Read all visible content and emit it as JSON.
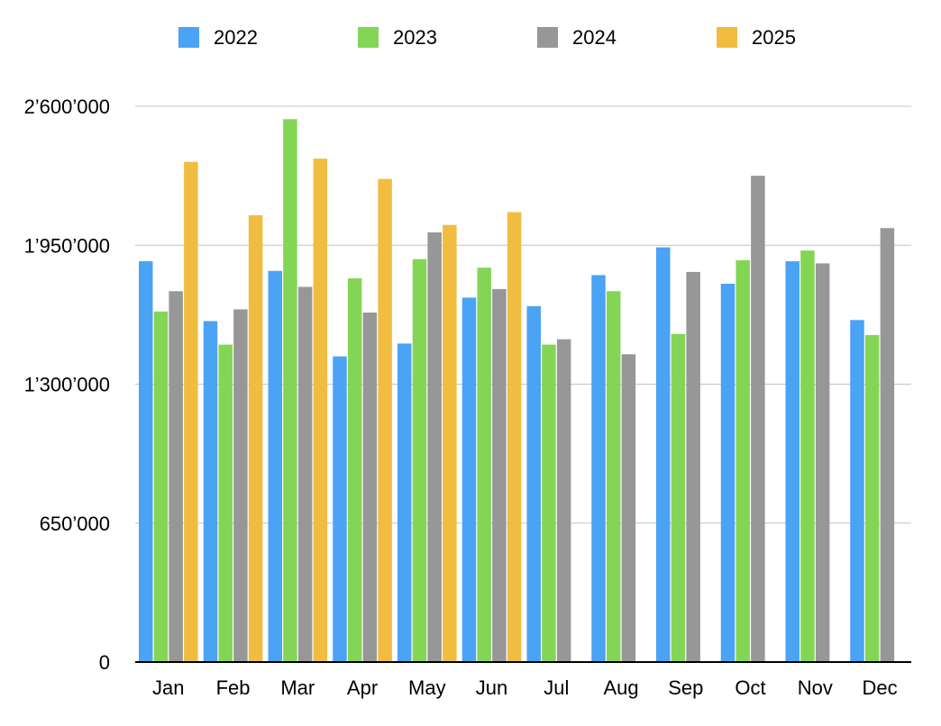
{
  "chart_data": {
    "type": "bar",
    "title": "",
    "xlabel": "",
    "ylabel": "",
    "categories": [
      "Jan",
      "Feb",
      "Mar",
      "Apr",
      "May",
      "Jun",
      "Jul",
      "Aug",
      "Sep",
      "Oct",
      "Nov",
      "Dec"
    ],
    "ylim": [
      0,
      2600000
    ],
    "yticks": [
      0,
      650000,
      1300000,
      1950000,
      2600000
    ],
    "ytick_labels": [
      "0",
      "650’000",
      "1’300’000",
      "1’950’000",
      "2’600’000"
    ],
    "grid": true,
    "legend_position": "top",
    "series": [
      {
        "name": "2022",
        "color": "#4aa3f5",
        "values": [
          1875000,
          1595000,
          1830000,
          1430000,
          1490000,
          1705000,
          1665000,
          1810000,
          1940000,
          1770000,
          1875000,
          1600000
        ]
      },
      {
        "name": "2023",
        "color": "#84d555",
        "values": [
          1640000,
          1485000,
          2540000,
          1795000,
          1885000,
          1845000,
          1485000,
          1735000,
          1535000,
          1880000,
          1925000,
          1530000
        ]
      },
      {
        "name": "2024",
        "color": "#979797",
        "values": [
          1735000,
          1650000,
          1755000,
          1635000,
          2010000,
          1745000,
          1510000,
          1440000,
          1825000,
          2275000,
          1865000,
          2030000
        ]
      },
      {
        "name": "2025",
        "color": "#f0bd40",
        "values": [
          2340000,
          2090000,
          2355000,
          2260000,
          2045000,
          2105000,
          null,
          null,
          null,
          null,
          null,
          null
        ]
      }
    ]
  }
}
